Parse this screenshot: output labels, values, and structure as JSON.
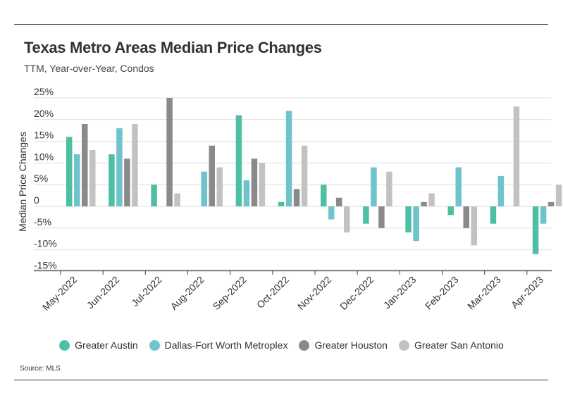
{
  "header": {
    "title": "Texas Metro Areas Median Price Changes",
    "subtitle": "TTM, Year-over-Year, Condos"
  },
  "footer": {
    "source": "Source:  MLS"
  },
  "chart_data": {
    "type": "bar",
    "title": "Texas Metro Areas Median Price Changes",
    "subtitle": "TTM, Year-over-Year, Condos",
    "xlabel": "",
    "ylabel": "Median Price Changes",
    "ylim": [
      -16,
      25
    ],
    "yticks": [
      25,
      20,
      15,
      10,
      5,
      0,
      -5,
      -10,
      -15
    ],
    "ytick_labels": [
      "25%",
      "20%",
      "15%",
      "10%",
      "5%",
      "0",
      "-5%",
      "-10%",
      "-15%"
    ],
    "grid": true,
    "legend_position": "bottom",
    "categories": [
      "May-2022",
      "Jun-2022",
      "Jul-2022",
      "Aug-2022",
      "Sep-2022",
      "Oct-2022",
      "Nov-2022",
      "Dec-2022",
      "Jan-2023",
      "Feb-2023",
      "Mar-2023",
      "Apr-2023"
    ],
    "series": [
      {
        "name": "Greater Austin",
        "color": "#4dbfa4",
        "values": [
          16,
          12,
          5,
          null,
          21,
          1,
          5,
          -4,
          -6,
          -2,
          -4,
          -11
        ]
      },
      {
        "name": "Dallas-Fort Worth Metroplex",
        "color": "#6ec3cc",
        "values": [
          12,
          18,
          null,
          8,
          6,
          22,
          -3,
          9,
          -8,
          9,
          7,
          -4
        ]
      },
      {
        "name": "Greater Houston",
        "color": "#8a8a8a",
        "values": [
          19,
          11,
          25,
          14,
          11,
          4,
          2,
          -5,
          1,
          -5,
          null,
          1
        ]
      },
      {
        "name": "Greater San Antonio",
        "color": "#c2c2c2",
        "values": [
          13,
          19,
          3,
          9,
          10,
          14,
          -6,
          8,
          3,
          -9,
          23,
          5
        ]
      }
    ]
  }
}
